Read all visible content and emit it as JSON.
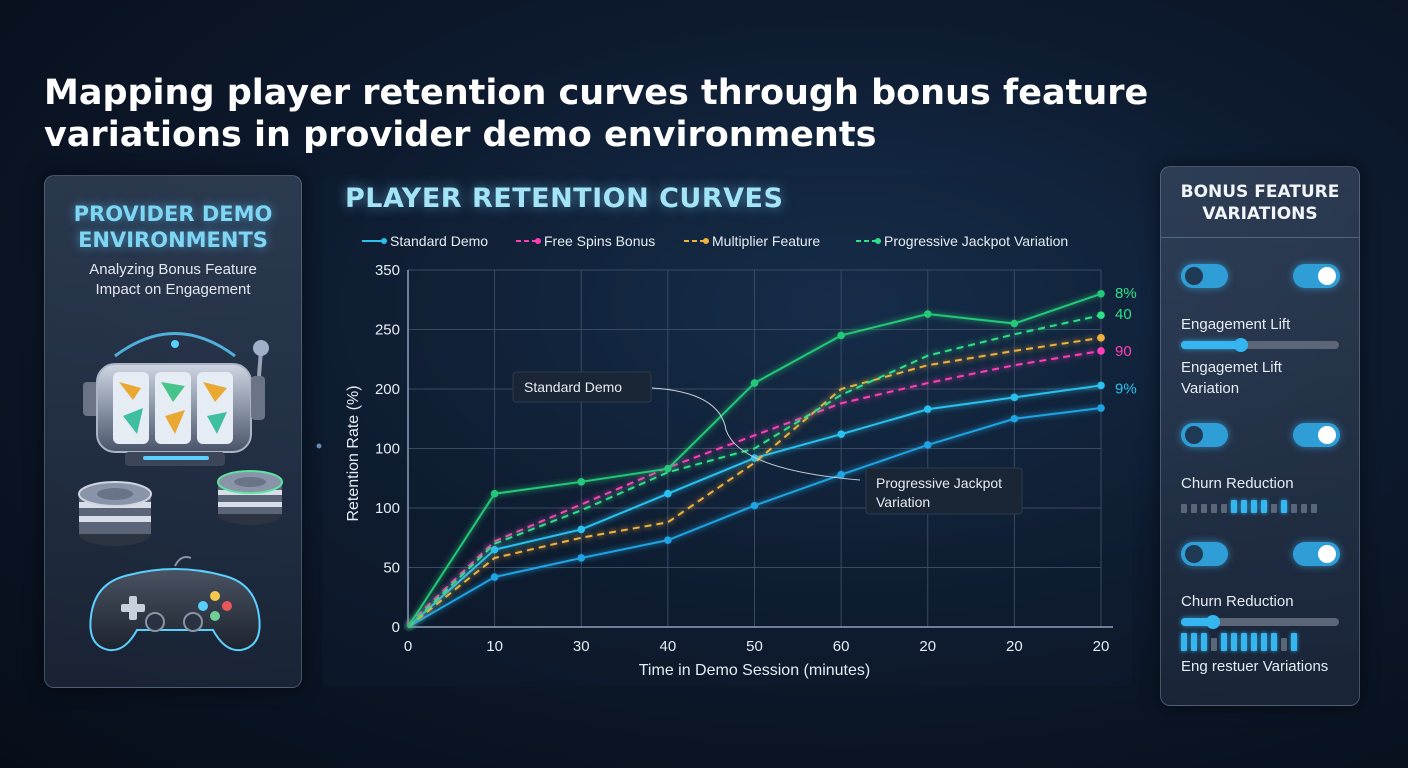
{
  "page": {
    "title": "Mapping player retention curves through bonus feature variations in provider demo environments"
  },
  "left_panel": {
    "title": "PROVIDER DEMO ENVIRONMENTS",
    "subtitle": "Analyzing Bonus Feature Impact on Engagement",
    "illustration_icons": [
      "slot-machine-icon",
      "poker-chips-icon",
      "gamepad-icon"
    ]
  },
  "chart_data": {
    "type": "line",
    "title": "PLAYER RETENTION CURVES",
    "xlabel": "Time in Demo Session (minutes)",
    "ylabel": "Retention Rate (%)",
    "x_ticks": [
      "0",
      "10",
      "30",
      "40",
      "50",
      "60",
      "20",
      "20",
      "20"
    ],
    "y_ticks": [
      "0",
      "50",
      "100",
      "100",
      "200",
      "250",
      "350"
    ],
    "ylim": [
      0,
      300
    ],
    "grid": true,
    "legend_position": "top",
    "series": [
      {
        "name": "Standard Demo",
        "color": "#29c2ef",
        "dashed": false,
        "values": [
          0,
          65,
          82,
          112,
          142,
          162,
          183,
          193,
          203
        ]
      },
      {
        "name": "Standard Demo",
        "color": "#1fa4e3",
        "dashed": false,
        "values": [
          0,
          42,
          58,
          73,
          102,
          128,
          153,
          175,
          184
        ]
      },
      {
        "name": "Free Spins Bonus",
        "color": "#ff3fb8",
        "dashed": true,
        "values": [
          2,
          72,
          103,
          134,
          161,
          188,
          205,
          220,
          232
        ]
      },
      {
        "name": "Multiplier Feature",
        "color": "#f0b23c",
        "dashed": true,
        "values": [
          0,
          58,
          75,
          88,
          138,
          200,
          220,
          232,
          243
        ]
      },
      {
        "name": "Progressive Jackpot Variation",
        "color": "#2ee089",
        "dashed": true,
        "values": [
          0,
          70,
          98,
          130,
          150,
          195,
          228,
          246,
          262
        ]
      },
      {
        "name": "Progressive Jackpot Variation",
        "color": "#23c978",
        "dashed": false,
        "values": [
          0,
          112,
          122,
          133,
          205,
          245,
          263,
          255,
          280
        ]
      }
    ],
    "end_labels": [
      {
        "text": "8%",
        "color": "#2ee089"
      },
      {
        "text": "40",
        "color": "#2ee089"
      },
      {
        "text": "90",
        "color": "#ff3fb8"
      },
      {
        "text": "9%",
        "color": "#29c2ef"
      }
    ],
    "annotations": [
      {
        "text": "Standard Demo"
      },
      {
        "text": "Progressive Jackpot Variation"
      }
    ]
  },
  "right_panel": {
    "title": "BONUS FEATURE VARIATIONS",
    "sections": [
      {
        "label": "Engagement Lift",
        "toggles": [
          "off",
          "on"
        ],
        "control": "slider",
        "level": 0.38
      },
      {
        "label": "Engagemet Lift Variation",
        "control": "none"
      },
      {
        "label": "Churn Reduction",
        "toggles": [
          "off",
          "on"
        ],
        "control": "segments",
        "segments": [
          0,
          0,
          0,
          0,
          0,
          1,
          1,
          1,
          1,
          0,
          1,
          0,
          0,
          0
        ]
      },
      {
        "label": "Churn Reduction",
        "toggles": [
          "off",
          "on"
        ],
        "control": "slider",
        "level": 0.2
      },
      {
        "label": "Eng restuer Variations",
        "control": "segments",
        "segments": [
          1,
          1,
          1,
          0,
          1,
          1,
          1,
          1,
          1,
          1,
          0,
          1
        ]
      }
    ]
  }
}
